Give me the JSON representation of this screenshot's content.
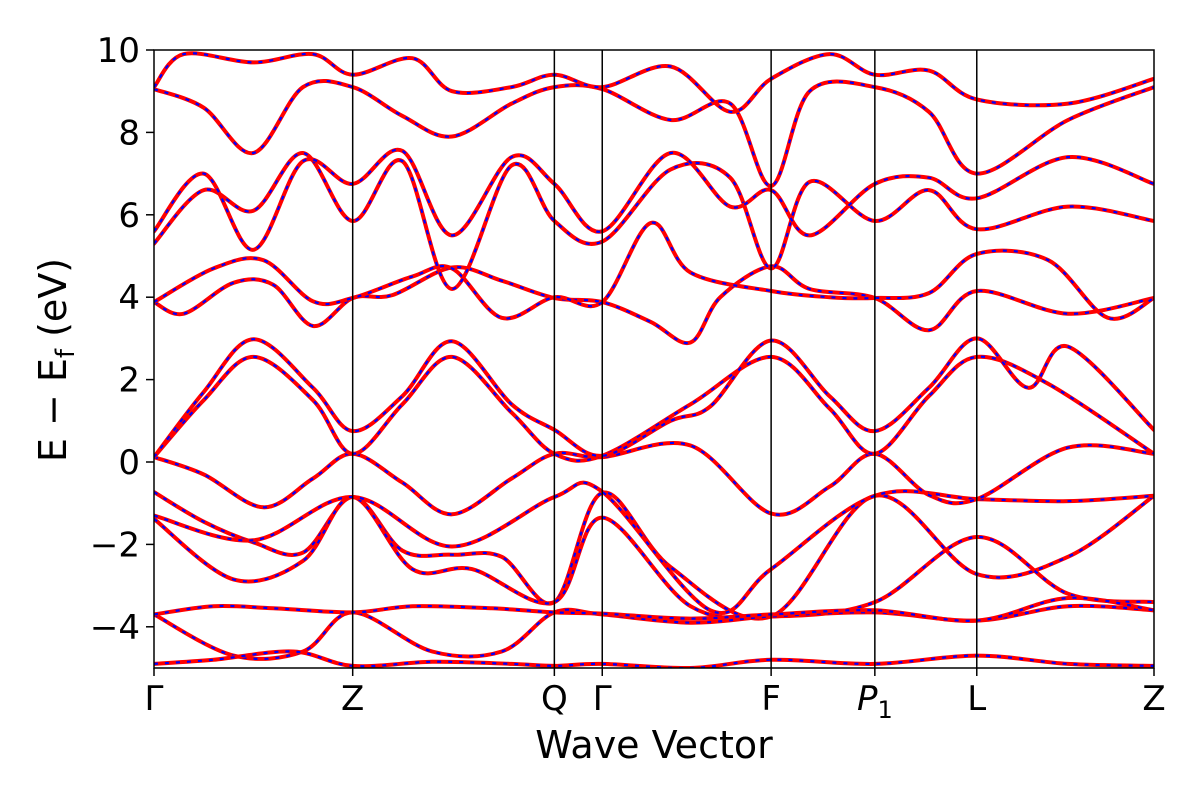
{
  "chart_data": {
    "type": "line",
    "title": "",
    "xlabel": "Wave Vector",
    "ylabel_main": "E − E",
    "ylabel_sub": "f",
    "ylabel_unit": " (eV)",
    "ylim": [
      -5,
      10
    ],
    "xlim": [
      0,
      5.033
    ],
    "yticks": [
      {
        "value": -4,
        "label": "−4"
      },
      {
        "value": -2,
        "label": "−2"
      },
      {
        "value": 0,
        "label": "0"
      },
      {
        "value": 2,
        "label": "2"
      },
      {
        "value": 4,
        "label": "4"
      },
      {
        "value": 6,
        "label": "6"
      },
      {
        "value": 8,
        "label": "8"
      },
      {
        "value": 10,
        "label": "10"
      }
    ],
    "kpoints": [
      {
        "x": 0.0,
        "label": "Γ",
        "sub": ""
      },
      {
        "x": 1.0,
        "label": "Z",
        "sub": ""
      },
      {
        "x": 2.015,
        "label": "Q",
        "sub": ""
      },
      {
        "x": 2.256,
        "label": "Γ",
        "sub": ""
      },
      {
        "x": 3.106,
        "label": "F",
        "sub": ""
      },
      {
        "x": 3.628,
        "label": "P",
        "sub": "1",
        "italic": true
      },
      {
        "x": 4.141,
        "label": "L",
        "sub": ""
      },
      {
        "x": 5.033,
        "label": "Z",
        "sub": ""
      }
    ],
    "grid": false,
    "legend": "none",
    "colors": {
      "solid": "#ff0000",
      "dashed": "#0000ff",
      "frame": "#000000"
    },
    "series": [
      {
        "points": [
          [
            0,
            -0.73
          ],
          [
            0.25,
            -1.45
          ],
          [
            0.5,
            -1.95
          ],
          [
            0.75,
            -2.2
          ],
          [
            1.0,
            -0.85
          ],
          [
            1.25,
            -2.15
          ],
          [
            1.5,
            -2.25
          ],
          [
            1.75,
            -2.3
          ],
          [
            2.015,
            -3.4
          ],
          [
            2.256,
            -0.75
          ],
          [
            2.6,
            -2.55
          ],
          [
            3.106,
            -3.75
          ],
          [
            3.628,
            -0.82
          ],
          [
            4.141,
            -2.72
          ],
          [
            4.6,
            -2.3
          ],
          [
            5.033,
            -0.82
          ]
        ]
      },
      {
        "points": [
          [
            0,
            -1.38
          ],
          [
            0.4,
            -2.85
          ],
          [
            0.75,
            -2.4
          ],
          [
            1.0,
            -0.85
          ],
          [
            1.3,
            -2.6
          ],
          [
            1.6,
            -2.6
          ],
          [
            2.015,
            -3.4
          ],
          [
            2.256,
            -1.35
          ],
          [
            2.7,
            -3.5
          ],
          [
            3.106,
            -3.75
          ],
          [
            3.628,
            -3.4
          ],
          [
            4.141,
            -1.82
          ],
          [
            4.6,
            -3.2
          ],
          [
            5.033,
            -3.4
          ]
        ]
      },
      {
        "points": [
          [
            0,
            -1.3
          ],
          [
            0.5,
            -1.9
          ],
          [
            1.0,
            -0.85
          ],
          [
            1.5,
            -2.05
          ],
          [
            2.015,
            -0.85
          ],
          [
            2.256,
            -0.72
          ],
          [
            2.8,
            -3.6
          ],
          [
            3.106,
            -2.6
          ],
          [
            3.628,
            -0.82
          ],
          [
            4.141,
            -0.9
          ],
          [
            4.6,
            -0.95
          ],
          [
            5.033,
            -0.82
          ]
        ]
      },
      {
        "points": [
          [
            0,
            -3.7
          ],
          [
            0.4,
            -4.7
          ],
          [
            0.75,
            -4.6
          ],
          [
            1.0,
            -3.65
          ],
          [
            1.4,
            -4.6
          ],
          [
            1.75,
            -4.6
          ],
          [
            2.015,
            -3.65
          ],
          [
            2.256,
            -3.7
          ],
          [
            2.7,
            -3.9
          ],
          [
            3.106,
            -3.75
          ],
          [
            3.628,
            -3.65
          ],
          [
            4.141,
            -3.85
          ],
          [
            4.6,
            -3.5
          ],
          [
            5.033,
            -3.6
          ]
        ]
      },
      {
        "points": [
          [
            0,
            -3.7
          ],
          [
            0.3,
            -3.5
          ],
          [
            0.6,
            -3.55
          ],
          [
            1.0,
            -3.65
          ],
          [
            1.3,
            -3.5
          ],
          [
            1.7,
            -3.55
          ],
          [
            2.015,
            -3.65
          ],
          [
            2.256,
            -3.68
          ],
          [
            2.7,
            -3.8
          ],
          [
            3.106,
            -3.7
          ],
          [
            3.628,
            -3.6
          ],
          [
            4.141,
            -3.85
          ],
          [
            4.6,
            -3.3
          ],
          [
            5.033,
            -3.6
          ]
        ]
      },
      {
        "points": [
          [
            0,
            0.12
          ],
          [
            0.25,
            -0.3
          ],
          [
            0.55,
            -1.1
          ],
          [
            0.8,
            -0.4
          ],
          [
            1.0,
            0.2
          ],
          [
            1.25,
            -0.5
          ],
          [
            1.5,
            -1.27
          ],
          [
            1.8,
            -0.4
          ],
          [
            2.015,
            0.2
          ],
          [
            2.256,
            0.12
          ],
          [
            2.7,
            0.4
          ],
          [
            3.106,
            -1.25
          ],
          [
            3.4,
            -0.6
          ],
          [
            3.628,
            0.2
          ],
          [
            3.9,
            -0.8
          ],
          [
            4.141,
            -0.9
          ],
          [
            4.6,
            0.35
          ],
          [
            5.033,
            0.2
          ]
        ]
      },
      {
        "points": [
          [
            0,
            0.12
          ],
          [
            0.25,
            1.5
          ],
          [
            0.5,
            2.55
          ],
          [
            0.8,
            1.5
          ],
          [
            1.0,
            0.2
          ],
          [
            1.25,
            1.4
          ],
          [
            1.5,
            2.55
          ],
          [
            1.8,
            1.2
          ],
          [
            2.015,
            0.2
          ],
          [
            2.256,
            0.15
          ],
          [
            2.7,
            1.4
          ],
          [
            3.106,
            2.55
          ],
          [
            3.4,
            1.3
          ],
          [
            3.628,
            0.2
          ],
          [
            3.9,
            1.6
          ],
          [
            4.141,
            2.55
          ],
          [
            4.5,
            1.9
          ],
          [
            5.033,
            0.2
          ]
        ]
      },
      {
        "points": [
          [
            0,
            0.12
          ],
          [
            0.25,
            1.7
          ],
          [
            0.5,
            2.98
          ],
          [
            0.8,
            1.8
          ],
          [
            1.0,
            0.75
          ],
          [
            1.25,
            1.6
          ],
          [
            1.5,
            2.93
          ],
          [
            1.8,
            1.4
          ],
          [
            2.015,
            0.78
          ],
          [
            2.256,
            0.15
          ],
          [
            2.6,
            1.0
          ],
          [
            2.8,
            1.35
          ],
          [
            3.106,
            2.95
          ],
          [
            3.4,
            1.6
          ],
          [
            3.628,
            0.75
          ],
          [
            3.9,
            1.8
          ],
          [
            4.141,
            3.0
          ],
          [
            4.4,
            1.8
          ],
          [
            4.6,
            2.8
          ],
          [
            5.033,
            0.78
          ]
        ]
      },
      {
        "points": [
          [
            0,
            3.88
          ],
          [
            0.15,
            3.6
          ],
          [
            0.4,
            4.35
          ],
          [
            0.6,
            4.3
          ],
          [
            0.8,
            3.3
          ],
          [
            1.0,
            3.98
          ],
          [
            1.2,
            4.05
          ],
          [
            1.5,
            4.72
          ],
          [
            1.75,
            4.4
          ],
          [
            2.015,
            3.98
          ],
          [
            2.256,
            3.88
          ],
          [
            2.5,
            3.4
          ],
          [
            2.7,
            2.9
          ],
          [
            2.85,
            4.0
          ],
          [
            3.106,
            4.75
          ],
          [
            3.3,
            4.2
          ],
          [
            3.628,
            3.98
          ],
          [
            3.9,
            3.2
          ],
          [
            4.141,
            4.15
          ],
          [
            4.6,
            3.6
          ],
          [
            5.033,
            3.98
          ]
        ]
      },
      {
        "points": [
          [
            0,
            3.88
          ],
          [
            0.3,
            4.7
          ],
          [
            0.55,
            4.9
          ],
          [
            0.8,
            3.9
          ],
          [
            1.0,
            3.98
          ],
          [
            1.3,
            4.5
          ],
          [
            1.5,
            4.7
          ],
          [
            1.75,
            3.5
          ],
          [
            2.015,
            4.0
          ],
          [
            2.256,
            3.88
          ],
          [
            2.5,
            5.8
          ],
          [
            2.7,
            4.6
          ],
          [
            3.106,
            4.15
          ],
          [
            3.4,
            4.0
          ],
          [
            3.628,
            3.98
          ],
          [
            3.9,
            4.1
          ],
          [
            4.141,
            5.05
          ],
          [
            4.5,
            4.9
          ],
          [
            4.8,
            3.5
          ],
          [
            5.033,
            3.98
          ]
        ]
      },
      {
        "points": [
          [
            0,
            5.3
          ],
          [
            0.25,
            6.6
          ],
          [
            0.5,
            6.1
          ],
          [
            0.75,
            7.5
          ],
          [
            1.0,
            5.85
          ],
          [
            1.25,
            7.3
          ],
          [
            1.5,
            4.2
          ],
          [
            1.8,
            7.2
          ],
          [
            2.015,
            5.85
          ],
          [
            2.256,
            5.35
          ],
          [
            2.6,
            7.1
          ],
          [
            2.9,
            6.9
          ],
          [
            3.106,
            4.7
          ],
          [
            3.3,
            6.8
          ],
          [
            3.628,
            5.85
          ],
          [
            3.9,
            6.6
          ],
          [
            4.141,
            5.65
          ],
          [
            4.6,
            6.2
          ],
          [
            5.033,
            5.85
          ]
        ]
      },
      {
        "points": [
          [
            0,
            5.6
          ],
          [
            0.25,
            7.0
          ],
          [
            0.5,
            5.15
          ],
          [
            0.75,
            7.3
          ],
          [
            1.0,
            6.75
          ],
          [
            1.25,
            7.55
          ],
          [
            1.5,
            5.5
          ],
          [
            1.8,
            7.4
          ],
          [
            2.015,
            6.75
          ],
          [
            2.256,
            5.6
          ],
          [
            2.6,
            7.5
          ],
          [
            2.9,
            6.2
          ],
          [
            3.106,
            6.6
          ],
          [
            3.3,
            5.5
          ],
          [
            3.628,
            6.75
          ],
          [
            3.9,
            6.9
          ],
          [
            4.141,
            6.4
          ],
          [
            4.6,
            7.4
          ],
          [
            5.033,
            6.75
          ]
        ]
      },
      {
        "points": [
          [
            0,
            9.05
          ],
          [
            0.25,
            8.6
          ],
          [
            0.5,
            7.5
          ],
          [
            0.75,
            9.1
          ],
          [
            1.0,
            9.1
          ],
          [
            1.25,
            8.4
          ],
          [
            1.5,
            7.9
          ],
          [
            1.8,
            8.7
          ],
          [
            2.015,
            9.1
          ],
          [
            2.256,
            9.05
          ],
          [
            2.6,
            8.3
          ],
          [
            2.9,
            8.7
          ],
          [
            3.106,
            6.7
          ],
          [
            3.3,
            9.0
          ],
          [
            3.628,
            9.1
          ],
          [
            3.9,
            8.5
          ],
          [
            4.141,
            7.0
          ],
          [
            4.6,
            8.3
          ],
          [
            5.033,
            9.1
          ]
        ]
      },
      {
        "points": [
          [
            0,
            9.1
          ],
          [
            0.15,
            9.9
          ],
          [
            0.5,
            9.7
          ],
          [
            0.8,
            9.9
          ],
          [
            1.0,
            9.4
          ],
          [
            1.3,
            9.8
          ],
          [
            1.5,
            9.0
          ],
          [
            1.8,
            9.1
          ],
          [
            2.015,
            9.4
          ],
          [
            2.256,
            9.1
          ],
          [
            2.6,
            9.6
          ],
          [
            2.9,
            8.5
          ],
          [
            3.106,
            9.3
          ],
          [
            3.4,
            9.9
          ],
          [
            3.628,
            9.4
          ],
          [
            3.9,
            9.5
          ],
          [
            4.141,
            8.8
          ],
          [
            4.6,
            8.7
          ],
          [
            5.033,
            9.3
          ]
        ]
      },
      {
        "points": [
          [
            0,
            -4.9
          ],
          [
            0.3,
            -4.8
          ],
          [
            0.7,
            -4.6
          ],
          [
            1.0,
            -4.95
          ],
          [
            1.4,
            -4.85
          ],
          [
            1.8,
            -4.9
          ],
          [
            2.015,
            -4.95
          ],
          [
            2.256,
            -4.9
          ],
          [
            2.7,
            -5.0
          ],
          [
            3.106,
            -4.8
          ],
          [
            3.628,
            -4.9
          ],
          [
            4.141,
            -4.7
          ],
          [
            4.6,
            -4.9
          ],
          [
            5.033,
            -4.95
          ]
        ]
      }
    ]
  }
}
